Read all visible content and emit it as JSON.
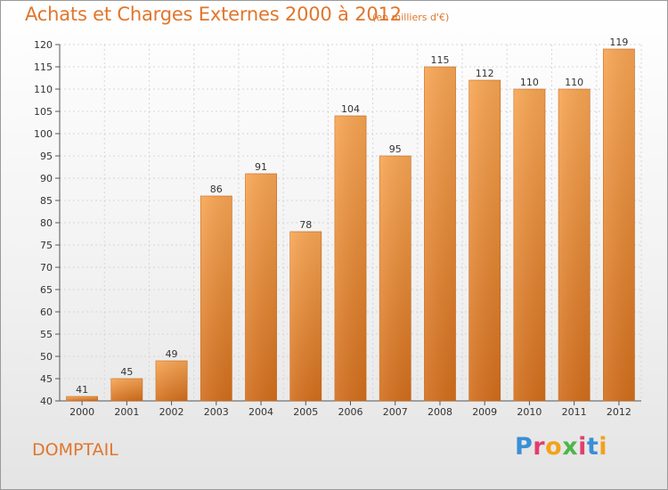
{
  "header": {
    "title": "Achats et Charges Externes 2000 à 2012",
    "subtitle": "(en milliers d'€)"
  },
  "footer": {
    "commune": "DOMPTAIL",
    "logo_letters": [
      {
        "ch": "P",
        "color": "#3a8fd6"
      },
      {
        "ch": "r",
        "color": "#e23d6e"
      },
      {
        "ch": "o",
        "color": "#f2a21b"
      },
      {
        "ch": "x",
        "color": "#4cb648"
      },
      {
        "ch": "i",
        "color": "#e23d6e"
      },
      {
        "ch": "t",
        "color": "#3a8fd6"
      },
      {
        "ch": "i",
        "color": "#f2a21b"
      }
    ]
  },
  "chart_data": {
    "type": "bar",
    "title": "Achats et Charges Externes 2000 à 2012",
    "subtitle": "(en milliers d'€)",
    "xlabel": "",
    "ylabel": "",
    "categories": [
      "2000",
      "2001",
      "2002",
      "2003",
      "2004",
      "2005",
      "2006",
      "2007",
      "2008",
      "2009",
      "2010",
      "2011",
      "2012"
    ],
    "values": [
      41,
      45,
      49,
      86,
      91,
      78,
      104,
      95,
      115,
      112,
      110,
      110,
      119
    ],
    "ylim": [
      40,
      120
    ],
    "yticks": [
      40,
      45,
      50,
      55,
      60,
      65,
      70,
      75,
      80,
      85,
      90,
      95,
      100,
      105,
      110,
      115,
      120
    ],
    "grid": true,
    "bar_color_top": "#f7a553",
    "bar_color_bottom": "#d26e1c"
  }
}
